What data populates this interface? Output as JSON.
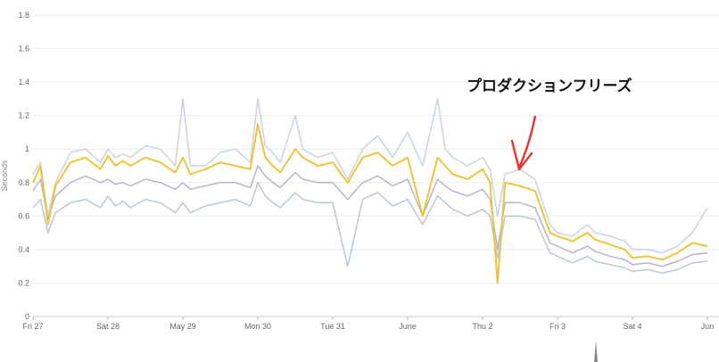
{
  "chart_data": {
    "type": "line",
    "ylabel": "Seconds",
    "ylim": [
      0,
      1.8
    ],
    "yticks": [
      "0",
      "0.2",
      "0.4",
      "0.6",
      "0.8",
      "1",
      "1.2",
      "1.4",
      "1.6",
      "1.8"
    ],
    "xlim": [
      0,
      9.05
    ],
    "xticks": [
      {
        "label": "Fri 27",
        "x": 0
      },
      {
        "label": "Sat 28",
        "x": 1
      },
      {
        "label": "May 29",
        "x": 2
      },
      {
        "label": "Mon 30",
        "x": 3
      },
      {
        "label": "Tue 31",
        "x": 4
      },
      {
        "label": "June",
        "x": 5
      },
      {
        "label": "Thu 2",
        "x": 6
      },
      {
        "label": "Fri 3",
        "x": 7
      },
      {
        "label": "Sat 4",
        "x": 8
      },
      {
        "label": "Jun",
        "x": 9
      }
    ],
    "grid": true,
    "annotation": {
      "text": "プロダクションフリーズ",
      "x": 6.25,
      "y": 1.29
    },
    "series": [
      {
        "key": "p99",
        "color": "#c8d3e2",
        "width": 1.5,
        "points": [
          [
            0,
            0.85
          ],
          [
            0.1,
            0.92
          ],
          [
            0.2,
            0.6
          ],
          [
            0.3,
            0.8
          ],
          [
            0.5,
            0.98
          ],
          [
            0.7,
            1.0
          ],
          [
            0.9,
            0.92
          ],
          [
            1.0,
            1.0
          ],
          [
            1.1,
            0.95
          ],
          [
            1.2,
            0.97
          ],
          [
            1.3,
            0.95
          ],
          [
            1.5,
            1.02
          ],
          [
            1.7,
            1.0
          ],
          [
            1.9,
            0.9
          ],
          [
            2.0,
            1.3
          ],
          [
            2.1,
            0.9
          ],
          [
            2.3,
            0.9
          ],
          [
            2.5,
            0.98
          ],
          [
            2.7,
            1.0
          ],
          [
            2.9,
            0.92
          ],
          [
            3.0,
            1.3
          ],
          [
            3.1,
            1.02
          ],
          [
            3.2,
            0.98
          ],
          [
            3.3,
            0.92
          ],
          [
            3.5,
            1.2
          ],
          [
            3.6,
            1.0
          ],
          [
            3.8,
            0.95
          ],
          [
            4.0,
            0.98
          ],
          [
            4.2,
            0.82
          ],
          [
            4.4,
            1.0
          ],
          [
            4.6,
            1.08
          ],
          [
            4.8,
            0.95
          ],
          [
            5.0,
            1.1
          ],
          [
            5.2,
            0.9
          ],
          [
            5.4,
            1.3
          ],
          [
            5.5,
            1.0
          ],
          [
            5.6,
            0.95
          ],
          [
            5.8,
            0.9
          ],
          [
            6.0,
            0.95
          ],
          [
            6.1,
            0.88
          ],
          [
            6.2,
            0.6
          ],
          [
            6.3,
            0.85
          ],
          [
            6.5,
            0.88
          ],
          [
            6.7,
            0.82
          ],
          [
            6.9,
            0.55
          ],
          [
            7.0,
            0.5
          ],
          [
            7.2,
            0.48
          ],
          [
            7.4,
            0.55
          ],
          [
            7.5,
            0.5
          ],
          [
            7.7,
            0.48
          ],
          [
            7.9,
            0.45
          ],
          [
            8.0,
            0.4
          ],
          [
            8.2,
            0.4
          ],
          [
            8.4,
            0.38
          ],
          [
            8.6,
            0.42
          ],
          [
            8.8,
            0.5
          ],
          [
            9.0,
            0.65
          ]
        ]
      },
      {
        "key": "p90",
        "color": "#f0c43a",
        "width": 2,
        "points": [
          [
            0,
            0.8
          ],
          [
            0.1,
            0.9
          ],
          [
            0.2,
            0.55
          ],
          [
            0.3,
            0.78
          ],
          [
            0.5,
            0.92
          ],
          [
            0.7,
            0.95
          ],
          [
            0.9,
            0.88
          ],
          [
            1.0,
            0.96
          ],
          [
            1.1,
            0.9
          ],
          [
            1.2,
            0.93
          ],
          [
            1.3,
            0.9
          ],
          [
            1.5,
            0.95
          ],
          [
            1.7,
            0.92
          ],
          [
            1.9,
            0.86
          ],
          [
            2.0,
            0.95
          ],
          [
            2.1,
            0.85
          ],
          [
            2.3,
            0.88
          ],
          [
            2.5,
            0.92
          ],
          [
            2.7,
            0.9
          ],
          [
            2.9,
            0.88
          ],
          [
            3.0,
            1.15
          ],
          [
            3.1,
            0.95
          ],
          [
            3.2,
            0.9
          ],
          [
            3.3,
            0.86
          ],
          [
            3.5,
            1.0
          ],
          [
            3.6,
            0.95
          ],
          [
            3.8,
            0.9
          ],
          [
            4.0,
            0.92
          ],
          [
            4.2,
            0.8
          ],
          [
            4.4,
            0.95
          ],
          [
            4.6,
            0.98
          ],
          [
            4.8,
            0.9
          ],
          [
            5.0,
            0.95
          ],
          [
            5.2,
            0.6
          ],
          [
            5.4,
            0.95
          ],
          [
            5.5,
            0.9
          ],
          [
            5.6,
            0.85
          ],
          [
            5.8,
            0.82
          ],
          [
            6.0,
            0.88
          ],
          [
            6.1,
            0.8
          ],
          [
            6.2,
            0.2
          ],
          [
            6.3,
            0.8
          ],
          [
            6.5,
            0.78
          ],
          [
            6.7,
            0.75
          ],
          [
            6.9,
            0.5
          ],
          [
            7.0,
            0.48
          ],
          [
            7.2,
            0.45
          ],
          [
            7.4,
            0.5
          ],
          [
            7.5,
            0.46
          ],
          [
            7.7,
            0.43
          ],
          [
            7.9,
            0.4
          ],
          [
            8.0,
            0.35
          ],
          [
            8.2,
            0.36
          ],
          [
            8.4,
            0.34
          ],
          [
            8.6,
            0.38
          ],
          [
            8.8,
            0.44
          ],
          [
            9.0,
            0.42
          ]
        ]
      },
      {
        "key": "p75",
        "color": "#b7b3cf",
        "width": 1.5,
        "points": [
          [
            0,
            0.75
          ],
          [
            0.1,
            0.82
          ],
          [
            0.2,
            0.58
          ],
          [
            0.3,
            0.72
          ],
          [
            0.5,
            0.8
          ],
          [
            0.7,
            0.84
          ],
          [
            0.9,
            0.8
          ],
          [
            1.0,
            0.82
          ],
          [
            1.1,
            0.79
          ],
          [
            1.2,
            0.8
          ],
          [
            1.3,
            0.78
          ],
          [
            1.5,
            0.82
          ],
          [
            1.7,
            0.8
          ],
          [
            1.9,
            0.76
          ],
          [
            2.0,
            0.8
          ],
          [
            2.1,
            0.76
          ],
          [
            2.3,
            0.78
          ],
          [
            2.5,
            0.8
          ],
          [
            2.7,
            0.8
          ],
          [
            2.9,
            0.77
          ],
          [
            3.0,
            0.9
          ],
          [
            3.1,
            0.84
          ],
          [
            3.2,
            0.8
          ],
          [
            3.3,
            0.77
          ],
          [
            3.5,
            0.86
          ],
          [
            3.6,
            0.82
          ],
          [
            3.8,
            0.8
          ],
          [
            4.0,
            0.8
          ],
          [
            4.2,
            0.7
          ],
          [
            4.4,
            0.8
          ],
          [
            4.6,
            0.84
          ],
          [
            4.8,
            0.78
          ],
          [
            5.0,
            0.82
          ],
          [
            5.2,
            0.6
          ],
          [
            5.4,
            0.82
          ],
          [
            5.5,
            0.78
          ],
          [
            5.6,
            0.75
          ],
          [
            5.8,
            0.72
          ],
          [
            6.0,
            0.76
          ],
          [
            6.1,
            0.7
          ],
          [
            6.2,
            0.4
          ],
          [
            6.3,
            0.68
          ],
          [
            6.5,
            0.68
          ],
          [
            6.7,
            0.65
          ],
          [
            6.9,
            0.44
          ],
          [
            7.0,
            0.42
          ],
          [
            7.2,
            0.38
          ],
          [
            7.4,
            0.42
          ],
          [
            7.5,
            0.39
          ],
          [
            7.7,
            0.36
          ],
          [
            7.9,
            0.34
          ],
          [
            8.0,
            0.31
          ],
          [
            8.2,
            0.32
          ],
          [
            8.4,
            0.3
          ],
          [
            8.6,
            0.33
          ],
          [
            8.8,
            0.37
          ],
          [
            9.0,
            0.38
          ]
        ]
      },
      {
        "key": "p50",
        "color": "#b9c7d9",
        "width": 1.5,
        "points": [
          [
            0,
            0.65
          ],
          [
            0.1,
            0.7
          ],
          [
            0.2,
            0.5
          ],
          [
            0.3,
            0.62
          ],
          [
            0.5,
            0.68
          ],
          [
            0.7,
            0.7
          ],
          [
            0.9,
            0.65
          ],
          [
            1.0,
            0.72
          ],
          [
            1.1,
            0.66
          ],
          [
            1.2,
            0.69
          ],
          [
            1.3,
            0.65
          ],
          [
            1.5,
            0.7
          ],
          [
            1.7,
            0.68
          ],
          [
            1.9,
            0.62
          ],
          [
            2.0,
            0.68
          ],
          [
            2.1,
            0.62
          ],
          [
            2.3,
            0.66
          ],
          [
            2.5,
            0.68
          ],
          [
            2.7,
            0.7
          ],
          [
            2.9,
            0.66
          ],
          [
            3.0,
            0.8
          ],
          [
            3.1,
            0.72
          ],
          [
            3.2,
            0.68
          ],
          [
            3.3,
            0.65
          ],
          [
            3.5,
            0.74
          ],
          [
            3.6,
            0.7
          ],
          [
            3.8,
            0.68
          ],
          [
            4.0,
            0.68
          ],
          [
            4.2,
            0.3
          ],
          [
            4.4,
            0.7
          ],
          [
            4.6,
            0.74
          ],
          [
            4.8,
            0.66
          ],
          [
            5.0,
            0.7
          ],
          [
            5.2,
            0.55
          ],
          [
            5.4,
            0.72
          ],
          [
            5.5,
            0.68
          ],
          [
            5.6,
            0.64
          ],
          [
            5.8,
            0.6
          ],
          [
            6.0,
            0.64
          ],
          [
            6.1,
            0.6
          ],
          [
            6.2,
            0.35
          ],
          [
            6.3,
            0.6
          ],
          [
            6.5,
            0.6
          ],
          [
            6.7,
            0.58
          ],
          [
            6.9,
            0.38
          ],
          [
            7.0,
            0.36
          ],
          [
            7.2,
            0.32
          ],
          [
            7.4,
            0.36
          ],
          [
            7.5,
            0.33
          ],
          [
            7.7,
            0.31
          ],
          [
            7.9,
            0.29
          ],
          [
            8.0,
            0.27
          ],
          [
            8.2,
            0.28
          ],
          [
            8.4,
            0.26
          ],
          [
            8.6,
            0.28
          ],
          [
            8.8,
            0.32
          ],
          [
            9.0,
            0.33
          ]
        ]
      }
    ]
  }
}
